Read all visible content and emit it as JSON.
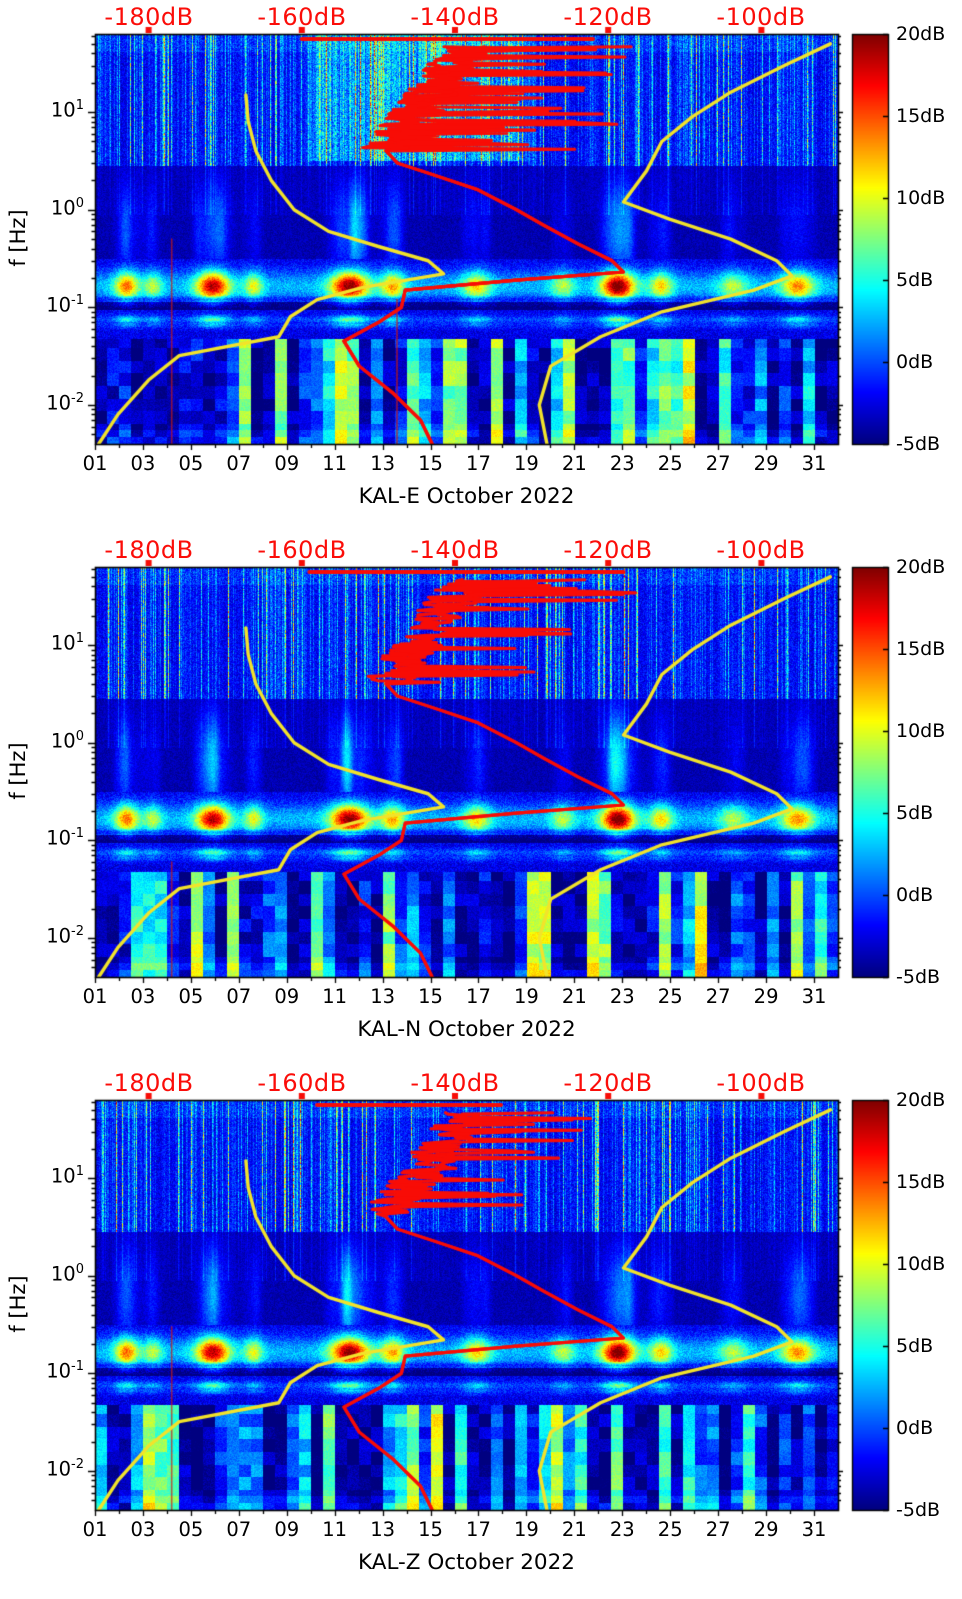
{
  "chart_data": {
    "type": "heatmap",
    "figure_kind": "seismic power spectral density spectrograms with overlaid noise-model curves",
    "station": "KAL",
    "month": "October 2022",
    "panels": [
      {
        "id": "KAL-E",
        "component": "E",
        "title": "KAL-E October 2022",
        "seed": 11,
        "strong_hf_noise_day_range": [
          9.5,
          19.5
        ],
        "red_top_line_dB": [
          -160,
          -122
        ],
        "red_hf_spike_dB": 26,
        "red_vertical_lines": [
          {
            "day": 4.2,
            "f_top": 0.5,
            "f_bottom": 0.004
          },
          {
            "day": 13.6,
            "f_top": 0.12,
            "f_bottom": 0.004
          }
        ]
      },
      {
        "id": "KAL-N",
        "component": "N",
        "title": "KAL-N October 2022",
        "seed": 23,
        "strong_hf_noise_day_range": null,
        "red_top_line_dB": [
          -159,
          -118
        ],
        "red_hf_spike_dB": 22,
        "red_vertical_lines": [
          {
            "day": 4.2,
            "f_top": 0.06,
            "f_bottom": 0.004
          }
        ]
      },
      {
        "id": "KAL-Z",
        "component": "Z",
        "title": "KAL-Z October 2022",
        "seed": 37,
        "strong_hf_noise_day_range": null,
        "red_top_line_dB": [
          -158,
          -134
        ],
        "red_hf_spike_dB": 16,
        "red_vertical_lines": [
          {
            "day": 4.2,
            "f_top": 0.3,
            "f_bottom": 0.004
          }
        ]
      }
    ],
    "top_axis": {
      "color": "#fb0d09",
      "labels": [
        "-180dB",
        "-160dB",
        "-140dB",
        "-120dB",
        "-100dB"
      ],
      "values_dB": [
        -180,
        -160,
        -140,
        -120,
        -100
      ],
      "range_dB": [
        -187,
        -90
      ]
    },
    "x_axis": {
      "tick_labels": [
        "01",
        "03",
        "05",
        "07",
        "09",
        "11",
        "13",
        "15",
        "17",
        "19",
        "21",
        "23",
        "25",
        "27",
        "29",
        "31"
      ],
      "tick_days": [
        1,
        3,
        5,
        7,
        9,
        11,
        13,
        15,
        17,
        19,
        21,
        23,
        25,
        27,
        29,
        31
      ],
      "range_days": [
        1,
        32
      ]
    },
    "y_axis": {
      "label": "f [Hz]",
      "scale": "log",
      "range_hz": [
        0.004,
        63
      ],
      "tick_labels": [
        {
          "base": "10",
          "exp": "1"
        },
        {
          "base": "10",
          "exp": "0"
        },
        {
          "base": "10",
          "exp": "-1"
        },
        {
          "base": "10",
          "exp": "-2"
        }
      ],
      "tick_exponents": [
        1,
        0,
        -1,
        -2
      ]
    },
    "colorbar": {
      "colormap": "jet",
      "min_dB": -5,
      "max_dB": 20,
      "tick_labels": [
        "20dB",
        "15dB",
        "10dB",
        "5dB",
        "0dB",
        "-5dB"
      ],
      "tick_values_dB": [
        20,
        15,
        10,
        5,
        0,
        -5
      ]
    },
    "overlays": {
      "red_median_psd_dB_hz": [
        [
          -143,
          0.004
        ],
        [
          -144.5,
          0.007
        ],
        [
          -148,
          0.013
        ],
        [
          -152.5,
          0.025
        ],
        [
          -154.5,
          0.045
        ],
        [
          -150,
          0.07
        ],
        [
          -147,
          0.1
        ],
        [
          -146.5,
          0.15
        ],
        [
          -132,
          0.19
        ],
        [
          -118,
          0.23
        ],
        [
          -119.5,
          0.3
        ],
        [
          -124,
          0.45
        ],
        [
          -128.5,
          0.7
        ],
        [
          -132,
          1
        ],
        [
          -137,
          1.6
        ],
        [
          -143,
          2.3
        ],
        [
          -147.5,
          3
        ],
        [
          -149,
          4
        ]
      ],
      "yellow_low_noise_model_dB_hz": [
        [
          -186.5,
          0.004
        ],
        [
          -184,
          0.008
        ],
        [
          -180,
          0.018
        ],
        [
          -176,
          0.032
        ],
        [
          -163,
          0.05
        ],
        [
          -161.5,
          0.08
        ],
        [
          -158,
          0.12
        ],
        [
          -152,
          0.16
        ],
        [
          -141.5,
          0.22
        ],
        [
          -143.5,
          0.3
        ],
        [
          -150,
          0.42
        ],
        [
          -156.5,
          0.6
        ],
        [
          -161,
          1
        ],
        [
          -164,
          2
        ],
        [
          -166,
          4
        ],
        [
          -167,
          8
        ],
        [
          -167.3,
          15
        ]
      ],
      "yellow_high_noise_model_dB_hz": [
        [
          -128,
          0.004
        ],
        [
          -129,
          0.01
        ],
        [
          -127.5,
          0.025
        ],
        [
          -121,
          0.05
        ],
        [
          -113,
          0.09
        ],
        [
          -101,
          0.15
        ],
        [
          -96,
          0.21
        ],
        [
          -98,
          0.3
        ],
        [
          -104,
          0.5
        ],
        [
          -112,
          0.8
        ],
        [
          -118,
          1.2
        ],
        [
          -115,
          2.5
        ],
        [
          -113,
          5
        ],
        [
          -109,
          9
        ],
        [
          -104,
          16
        ],
        [
          -97,
          30
        ],
        [
          -91,
          50
        ]
      ]
    },
    "microseism_storms": {
      "format": [
        "day",
        "amplitude_dB",
        "width_days"
      ],
      "events": [
        [
          2.3,
          9,
          0.5
        ],
        [
          3.4,
          5,
          0.4
        ],
        [
          5.9,
          12.5,
          0.7
        ],
        [
          7.6,
          6,
          0.4
        ],
        [
          11.6,
          13.5,
          0.8
        ],
        [
          13.4,
          8,
          0.5
        ],
        [
          16.9,
          7,
          0.6
        ],
        [
          20.5,
          5,
          0.5
        ],
        [
          22.8,
          14,
          0.7
        ],
        [
          24.6,
          7,
          0.5
        ],
        [
          27.6,
          5,
          0.6
        ],
        [
          30.3,
          8.5,
          0.7
        ]
      ]
    },
    "colors": {
      "red": "#f80c06",
      "yellow": "#f2e32b"
    }
  }
}
